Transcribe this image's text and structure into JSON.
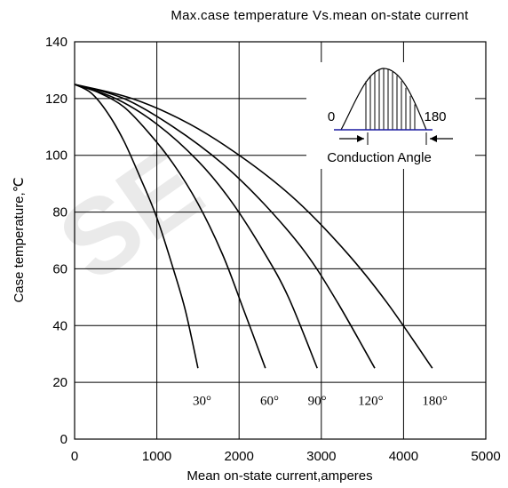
{
  "chart_data": {
    "type": "line",
    "title": "Max.case temperature Vs.mean on-state current",
    "xlabel": "Mean on-state current,amperes",
    "ylabel": "Case temperature,℃",
    "xlim": [
      0,
      5000
    ],
    "ylim": [
      0,
      140
    ],
    "xticks": [
      0,
      1000,
      2000,
      3000,
      4000,
      5000
    ],
    "yticks": [
      0,
      20,
      40,
      60,
      80,
      100,
      120,
      140
    ],
    "grid": true,
    "series": [
      {
        "name": "30°",
        "label_at": [
          1550,
          12
        ],
        "points": [
          [
            0,
            125
          ],
          [
            200,
            122
          ],
          [
            400,
            115
          ],
          [
            600,
            105
          ],
          [
            800,
            92
          ],
          [
            1000,
            78
          ],
          [
            1200,
            60
          ],
          [
            1350,
            45
          ],
          [
            1500,
            25
          ]
        ]
      },
      {
        "name": "60°",
        "label_at": [
          2370,
          12
        ],
        "points": [
          [
            0,
            125
          ],
          [
            300,
            122
          ],
          [
            600,
            117
          ],
          [
            900,
            108
          ],
          [
            1200,
            97
          ],
          [
            1500,
            83
          ],
          [
            1800,
            65
          ],
          [
            2050,
            46
          ],
          [
            2320,
            25
          ]
        ]
      },
      {
        "name": "90°",
        "label_at": [
          2950,
          12
        ],
        "points": [
          [
            0,
            125
          ],
          [
            500,
            120
          ],
          [
            1000,
            111
          ],
          [
            1500,
            98
          ],
          [
            1900,
            84
          ],
          [
            2300,
            66
          ],
          [
            2600,
            50
          ],
          [
            2950,
            25
          ]
        ]
      },
      {
        "name": "120°",
        "label_at": [
          3600,
          12
        ],
        "points": [
          [
            0,
            125
          ],
          [
            600,
            120
          ],
          [
            1200,
            110
          ],
          [
            1800,
            97
          ],
          [
            2300,
            83
          ],
          [
            2800,
            66
          ],
          [
            3200,
            48
          ],
          [
            3650,
            25
          ]
        ]
      },
      {
        "name": "180°",
        "label_at": [
          4380,
          12
        ],
        "points": [
          [
            0,
            125
          ],
          [
            700,
            120
          ],
          [
            1400,
            111
          ],
          [
            2100,
            98
          ],
          [
            2700,
            84
          ],
          [
            3300,
            66
          ],
          [
            3800,
            48
          ],
          [
            4350,
            25
          ]
        ]
      }
    ],
    "annotation": {
      "start_label": "0",
      "end_label": "180",
      "caption": "Conduction Angle"
    }
  },
  "watermark": "SE"
}
